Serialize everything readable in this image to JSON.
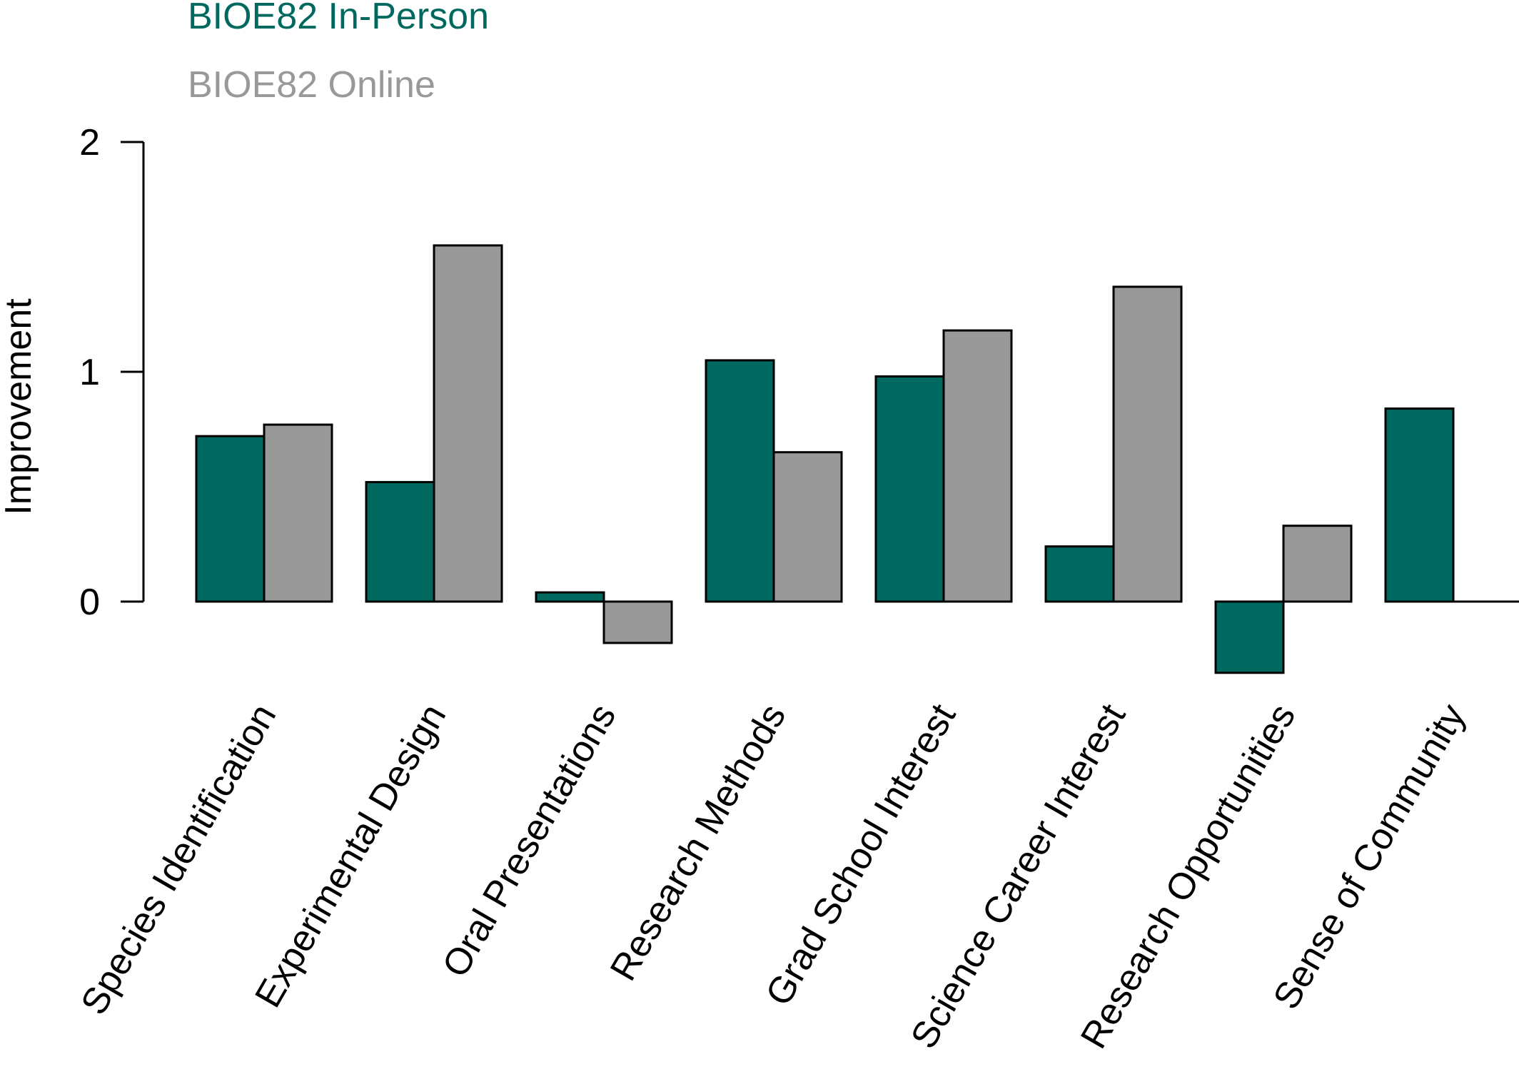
{
  "chart_data": {
    "type": "bar",
    "categories": [
      "Species Identification",
      "Experimental Design",
      "Oral Presentations",
      "Research Methods",
      "Grad School Interest",
      "Science Career Interest",
      "Research Opportunities",
      "Sense of Community"
    ],
    "series": [
      {
        "name": "BIOE82 In-Person",
        "color": "#00695f",
        "values": [
          0.72,
          0.52,
          0.04,
          1.05,
          0.98,
          0.24,
          -0.31,
          0.84
        ]
      },
      {
        "name": "BIOE82 Online",
        "color": "#999999",
        "values": [
          0.77,
          1.55,
          -0.18,
          0.65,
          1.18,
          1.37,
          0.33,
          0.0
        ]
      }
    ],
    "ylabel": "Improvement",
    "xlabel": "",
    "ylim": [
      0,
      2
    ],
    "yticks": [
      "0",
      "1",
      "2"
    ],
    "legend_position": "top-left",
    "grid": false
  }
}
